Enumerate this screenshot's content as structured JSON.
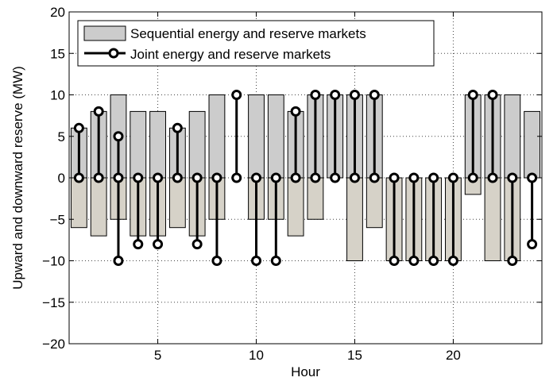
{
  "chart_data": {
    "type": "bar",
    "title": "",
    "xlabel": "Hour",
    "ylabel": "Upward and downward reserve (MW)",
    "xlim": [
      0.5,
      24.5
    ],
    "ylim": [
      -20,
      20
    ],
    "xticks": [
      5,
      10,
      15,
      20
    ],
    "yticks": [
      -20,
      -15,
      -10,
      -5,
      0,
      5,
      10,
      15,
      20
    ],
    "grid": true,
    "legend_position": "top-left",
    "x": [
      1,
      2,
      3,
      4,
      5,
      6,
      7,
      8,
      9,
      10,
      11,
      12,
      13,
      14,
      15,
      16,
      17,
      18,
      19,
      20,
      21,
      22,
      23,
      24
    ],
    "series": [
      {
        "name": "Sequential energy and reserve markets",
        "kind": "bar",
        "color_up": "#cccccc",
        "color_down": "#d6d2c8",
        "upward": [
          6,
          8,
          10,
          8,
          8,
          6,
          8,
          10,
          0,
          10,
          10,
          8,
          10,
          10,
          10,
          10,
          0,
          0,
          0,
          0,
          10,
          10,
          10,
          8
        ],
        "downward": [
          -6,
          -7,
          -5,
          -7,
          -7,
          -6,
          -7,
          -5,
          0,
          -5,
          -5,
          -7,
          -5,
          0,
          -10,
          -6,
          -10,
          -10,
          -10,
          -10,
          -2,
          -10,
          -10,
          0
        ]
      },
      {
        "name": "Joint energy and reserve markets",
        "kind": "stem",
        "color": "#000000",
        "upward": [
          6,
          8,
          0,
          0,
          0,
          6,
          0,
          0,
          10,
          0,
          0,
          8,
          10,
          10,
          10,
          10,
          0,
          0,
          0,
          0,
          10,
          10,
          0,
          0
        ],
        "downward": [
          0,
          0,
          -10,
          -8,
          -8,
          0,
          -8,
          -10,
          0,
          -10,
          -10,
          0,
          0,
          0,
          0,
          0,
          -10,
          -10,
          -10,
          -10,
          0,
          0,
          -10,
          -8
        ],
        "stem_value": [
          6,
          8,
          5,
          0,
          0,
          6,
          0,
          0,
          10,
          0,
          0,
          8,
          10,
          10,
          10,
          10,
          0,
          0,
          0,
          0,
          10,
          10,
          0,
          0
        ]
      }
    ]
  }
}
